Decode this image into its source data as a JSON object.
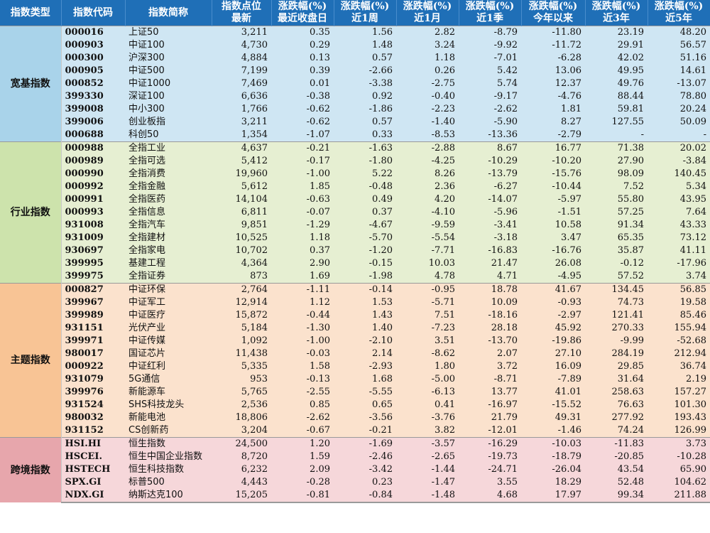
{
  "headers": [
    [
      "指数类型",
      ""
    ],
    [
      "指数代码",
      ""
    ],
    [
      "指数简称",
      ""
    ],
    [
      "指数点位",
      "最新"
    ],
    [
      "涨跌幅(%)",
      "最近收盘日"
    ],
    [
      "涨跌幅(%)",
      "近1周"
    ],
    [
      "涨跌幅(%)",
      "近1月"
    ],
    [
      "涨跌幅(%)",
      "近1季"
    ],
    [
      "涨跌幅(%)",
      "今年以来"
    ],
    [
      "涨跌幅(%)",
      "近3年"
    ],
    [
      "涨跌幅(%)",
      "近5年"
    ]
  ],
  "groups": [
    {
      "name": "宽基指数",
      "color": "#cfe6f3",
      "cat_color": "#a9d3ea",
      "rows": [
        [
          "000016",
          "上证50",
          "3,211",
          "0.35",
          "1.56",
          "2.82",
          "-8.79",
          "-11.80",
          "23.19",
          "48.20"
        ],
        [
          "000903",
          "中证100",
          "4,730",
          "0.29",
          "1.48",
          "3.24",
          "-9.92",
          "-11.72",
          "29.91",
          "56.57"
        ],
        [
          "000300",
          "沪深300",
          "4,884",
          "0.13",
          "0.57",
          "1.18",
          "-7.01",
          "-6.28",
          "42.02",
          "51.16"
        ],
        [
          "000905",
          "中证500",
          "7,199",
          "0.39",
          "-2.66",
          "0.26",
          "5.42",
          "13.06",
          "49.95",
          "14.61"
        ],
        [
          "000852",
          "中证1000",
          "7,469",
          "0.01",
          "-3.38",
          "-2.75",
          "5.74",
          "12.37",
          "49.76",
          "-13.07"
        ],
        [
          "399330",
          "深证100",
          "6,636",
          "-0.38",
          "0.92",
          "-0.40",
          "-9.17",
          "-4.76",
          "88.44",
          "78.80"
        ],
        [
          "399008",
          "中小300",
          "1,766",
          "-0.62",
          "-1.86",
          "-2.23",
          "-2.62",
          "1.81",
          "59.81",
          "20.24"
        ],
        [
          "399006",
          "创业板指",
          "3,211",
          "-0.62",
          "0.57",
          "-1.40",
          "-5.90",
          "8.27",
          "127.55",
          "50.09"
        ],
        [
          "000688",
          "科创50",
          "1,354",
          "-1.07",
          "0.33",
          "-8.53",
          "-13.36",
          "-2.79",
          "-",
          "-"
        ]
      ]
    },
    {
      "name": "行业指数",
      "color": "#e6efd2",
      "cat_color": "#cde3ac",
      "rows": [
        [
          "000988",
          "全指工业",
          "4,637",
          "-0.21",
          "-1.63",
          "-2.88",
          "8.67",
          "16.77",
          "71.38",
          "20.02"
        ],
        [
          "000989",
          "全指可选",
          "5,412",
          "-0.17",
          "-1.80",
          "-4.25",
          "-10.29",
          "-10.20",
          "27.90",
          "-3.84"
        ],
        [
          "000990",
          "全指消费",
          "19,960",
          "-1.00",
          "5.22",
          "8.26",
          "-13.79",
          "-15.76",
          "98.09",
          "140.45"
        ],
        [
          "000992",
          "全指金融",
          "5,612",
          "1.85",
          "-0.48",
          "2.36",
          "-6.27",
          "-10.44",
          "7.52",
          "5.34"
        ],
        [
          "000991",
          "全指医药",
          "14,104",
          "-0.63",
          "0.49",
          "4.20",
          "-14.07",
          "-5.97",
          "55.80",
          "43.95"
        ],
        [
          "000993",
          "全指信息",
          "6,811",
          "-0.07",
          "0.37",
          "-4.10",
          "-5.96",
          "-1.51",
          "57.25",
          "7.64"
        ],
        [
          "931008",
          "全指汽车",
          "9,851",
          "-1.29",
          "-4.67",
          "-9.59",
          "-3.41",
          "10.58",
          "91.34",
          "43.33"
        ],
        [
          "931009",
          "全指建材",
          "10,525",
          "1.18",
          "-5.70",
          "-5.54",
          "-3.18",
          "3.47",
          "65.35",
          "73.12"
        ],
        [
          "930697",
          "全指家电",
          "10,702",
          "0.37",
          "-1.20",
          "-7.71",
          "-16.83",
          "-16.76",
          "35.87",
          "41.11"
        ],
        [
          "399995",
          "基建工程",
          "4,364",
          "2.90",
          "-0.15",
          "10.03",
          "21.47",
          "26.08",
          "-0.12",
          "-17.96"
        ],
        [
          "399975",
          "全指证券",
          "873",
          "1.69",
          "-1.98",
          "4.78",
          "4.71",
          "-4.95",
          "57.52",
          "3.74"
        ]
      ]
    },
    {
      "name": "主题指数",
      "color": "#fbe2cd",
      "cat_color": "#f8c495",
      "rows": [
        [
          "000827",
          "中证环保",
          "2,764",
          "-1.11",
          "-0.14",
          "-0.95",
          "18.78",
          "41.67",
          "134.45",
          "56.85"
        ],
        [
          "399967",
          "中证军工",
          "12,914",
          "1.12",
          "1.53",
          "-5.71",
          "10.09",
          "-0.93",
          "74.73",
          "19.58"
        ],
        [
          "399989",
          "中证医疗",
          "15,872",
          "-0.44",
          "1.43",
          "7.51",
          "-18.16",
          "-2.97",
          "121.41",
          "85.46"
        ],
        [
          "931151",
          "光伏产业",
          "5,184",
          "-1.30",
          "1.40",
          "-7.23",
          "28.18",
          "45.92",
          "270.33",
          "155.94"
        ],
        [
          "399971",
          "中证传媒",
          "1,092",
          "-1.00",
          "-2.10",
          "3.51",
          "-13.70",
          "-19.86",
          "-9.99",
          "-52.68"
        ],
        [
          "980017",
          "国证芯片",
          "11,438",
          "-0.03",
          "2.14",
          "-8.62",
          "2.07",
          "27.10",
          "284.19",
          "212.94"
        ],
        [
          "000922",
          "中证红利",
          "5,335",
          "1.58",
          "-2.93",
          "1.80",
          "3.72",
          "16.09",
          "29.85",
          "36.74"
        ],
        [
          "931079",
          "5G通信",
          "953",
          "-0.13",
          "1.68",
          "-5.00",
          "-8.71",
          "-7.89",
          "31.64",
          "2.19"
        ],
        [
          "399976",
          "新能源车",
          "5,765",
          "-2.55",
          "-5.55",
          "-6.13",
          "13.77",
          "41.01",
          "258.63",
          "157.27"
        ],
        [
          "931524",
          "SHS科技龙头",
          "2,536",
          "0.85",
          "0.65",
          "0.41",
          "-16.97",
          "-15.52",
          "76.63",
          "101.30"
        ],
        [
          "980032",
          "新能电池",
          "18,806",
          "-2.62",
          "-3.56",
          "-3.76",
          "21.79",
          "49.31",
          "277.92",
          "193.43"
        ],
        [
          "931152",
          "CS创新药",
          "3,204",
          "-0.67",
          "-0.21",
          "3.82",
          "-12.01",
          "-1.46",
          "74.24",
          "126.99"
        ]
      ]
    },
    {
      "name": "跨境指数",
      "color": "#f6d7da",
      "cat_color": "#e7a6ac",
      "rows": [
        [
          "HSI.HI",
          "恒生指数",
          "24,500",
          "1.20",
          "-1.69",
          "-3.57",
          "-16.29",
          "-10.03",
          "-11.83",
          "3.73"
        ],
        [
          "HSCEI.",
          "恒生中国企业指数",
          "8,720",
          "1.59",
          "-2.46",
          "-2.65",
          "-19.73",
          "-18.79",
          "-20.85",
          "-10.28"
        ],
        [
          "HSTECH",
          "恒生科技指数",
          "6,232",
          "2.09",
          "-3.42",
          "-1.44",
          "-24.71",
          "-26.04",
          "43.54",
          "65.90"
        ],
        [
          "SPX.GI",
          "标普500",
          "4,443",
          "-0.28",
          "0.23",
          "-1.47",
          "3.55",
          "18.29",
          "52.48",
          "104.62"
        ],
        [
          "NDX.GI",
          "纳斯达克100",
          "15,205",
          "-0.81",
          "-0.84",
          "-1.48",
          "4.68",
          "17.97",
          "99.34",
          "211.88"
        ]
      ]
    }
  ]
}
